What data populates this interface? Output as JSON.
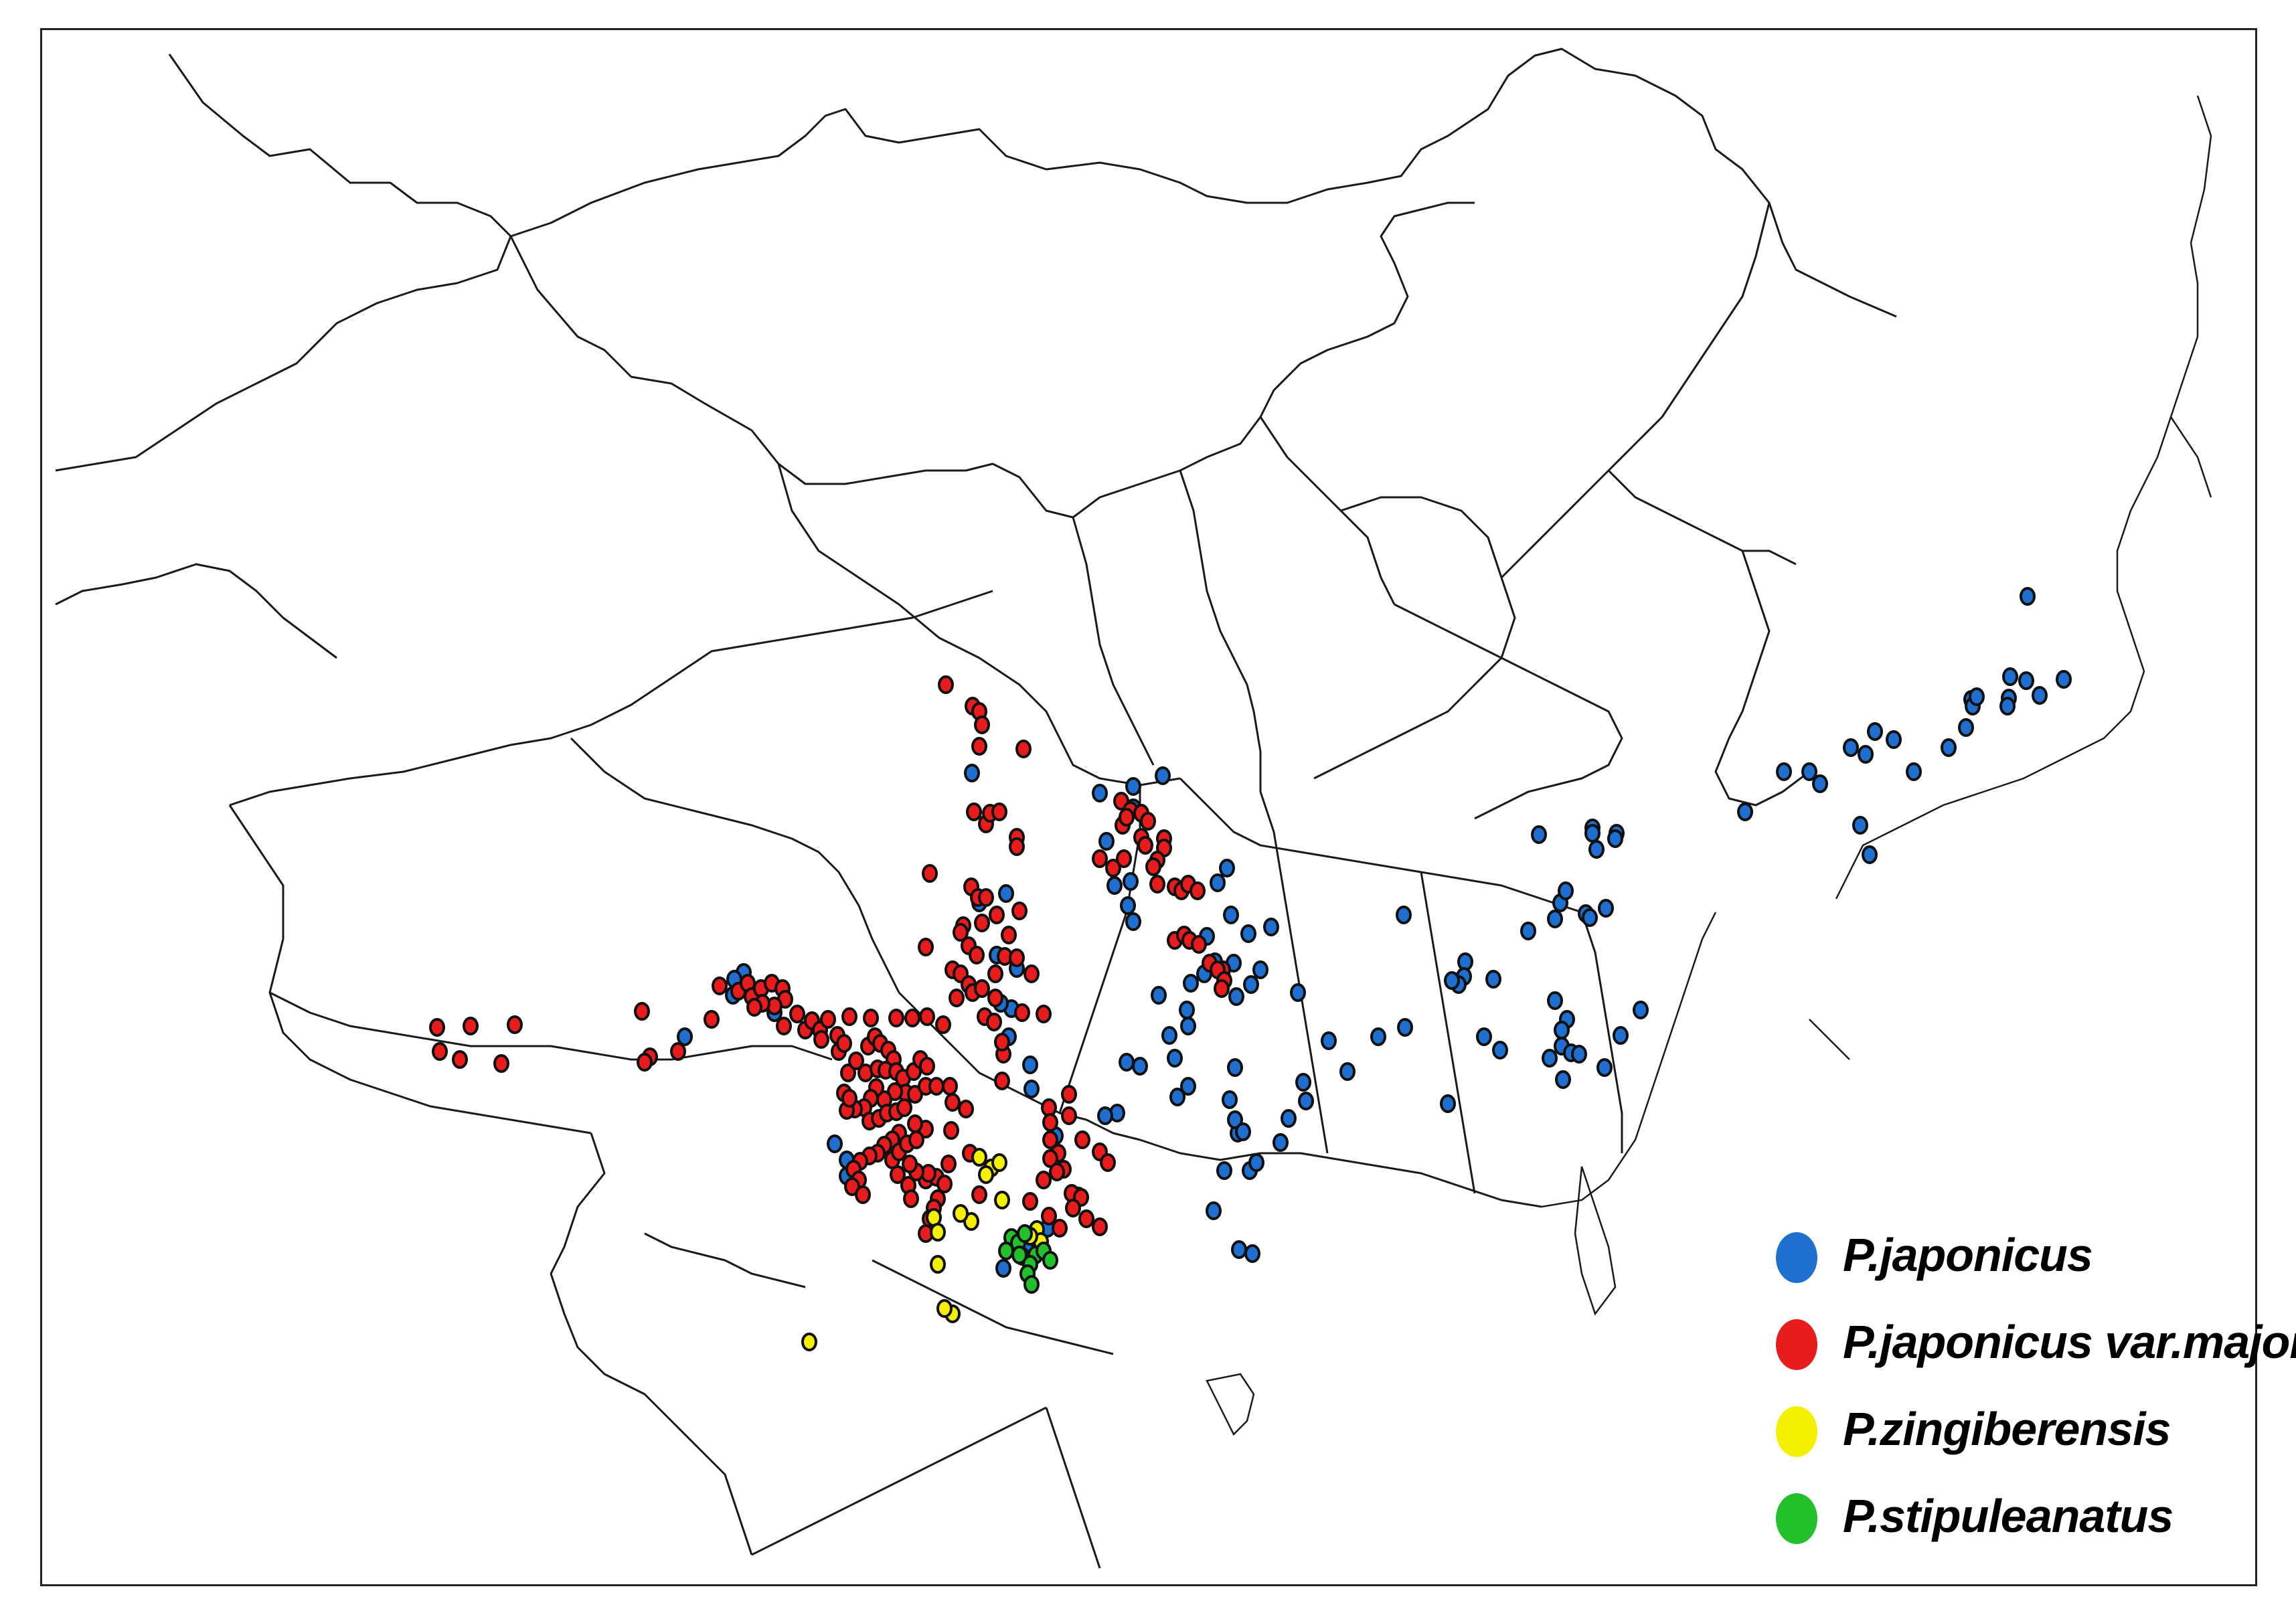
{
  "legend": {
    "items": [
      {
        "key": "japonicus",
        "label": "P.japonicus",
        "color": "#1f6fd1"
      },
      {
        "key": "major",
        "label": "P.japonicus var.major",
        "color": "#e81c1c"
      },
      {
        "key": "zingiberensis",
        "label": "P.zingiberensis",
        "color": "#f5f000"
      },
      {
        "key": "stipuleanatus",
        "label": "P.stipuleanatus",
        "color": "#22c02a"
      }
    ]
  },
  "colors": {
    "boundary": "#1a1a1a",
    "background": "#ffffff",
    "dot_outline": "#111111"
  },
  "occurrences": {
    "japonicus": [
      [
        1449,
        1152
      ],
      [
        1650,
        1254
      ],
      [
        1640,
        1182
      ],
      [
        1690,
        1172
      ],
      [
        1690,
        1204
      ],
      [
        1734,
        1156
      ],
      [
        1662,
        1320
      ],
      [
        1686,
        1314
      ],
      [
        1682,
        1350
      ],
      [
        1690,
        1374
      ],
      [
        1816,
        1316
      ],
      [
        1830,
        1294
      ],
      [
        1836,
        1364
      ],
      [
        1800,
        1396
      ],
      [
        1812,
        1434
      ],
      [
        1776,
        1466
      ],
      [
        1770,
        1506
      ],
      [
        1772,
        1530
      ],
      [
        1728,
        1484
      ],
      [
        1744,
        1544
      ],
      [
        1752,
        1578
      ],
      [
        1680,
        1584
      ],
      [
        1700,
        1590
      ],
      [
        1772,
        1620
      ],
      [
        1756,
        1636
      ],
      [
        1862,
        1392
      ],
      [
        1896,
        1382
      ],
      [
        1880,
        1446
      ],
      [
        1866,
        1468
      ],
      [
        1844,
        1486
      ],
      [
        1936,
        1480
      ],
      [
        1948,
        1642
      ],
      [
        1944,
        1614
      ],
      [
        1982,
        1552
      ],
      [
        2010,
        1598
      ],
      [
        1922,
        1668
      ],
      [
        1910,
        1704
      ],
      [
        1846,
        1690
      ],
      [
        1810,
        1806
      ],
      [
        1868,
        1870
      ],
      [
        1848,
        1864
      ],
      [
        1826,
        1746
      ],
      [
        1842,
        1670
      ],
      [
        1864,
        1746
      ],
      [
        1874,
        1734
      ],
      [
        1834,
        1640
      ],
      [
        1842,
        1592
      ],
      [
        1854,
        1688
      ],
      [
        1666,
        1660
      ],
      [
        1648,
        1664
      ],
      [
        1574,
        1694
      ],
      [
        1536,
        1588
      ],
      [
        1538,
        1624
      ],
      [
        1504,
        1546
      ],
      [
        1508,
        1504
      ],
      [
        1492,
        1496
      ],
      [
        1516,
        1444
      ],
      [
        1486,
        1424
      ],
      [
        1460,
        1346
      ],
      [
        1500,
        1332
      ],
      [
        1608,
        1784
      ],
      [
        1562,
        1832
      ],
      [
        1530,
        1862
      ],
      [
        1496,
        1892
      ],
      [
        1262,
        1730
      ],
      [
        1262,
        1754
      ],
      [
        1244,
        1706
      ],
      [
        1020,
        1546
      ],
      [
        1108,
        1450
      ],
      [
        1094,
        1460
      ],
      [
        1092,
        1484
      ],
      [
        1154,
        1510
      ],
      [
        1796,
        1452
      ],
      [
        1840,
        1436
      ],
      [
        2094,
        1364
      ],
      [
        2186,
        1434
      ],
      [
        2228,
        1460
      ],
      [
        2184,
        1456
      ],
      [
        2176,
        1468
      ],
      [
        2166,
        1462
      ],
      [
        2056,
        1546
      ],
      [
        2096,
        1532
      ],
      [
        2238,
        1566
      ],
      [
        2214,
        1546
      ],
      [
        2320,
        1492
      ],
      [
        2338,
        1520
      ],
      [
        2330,
        1536
      ],
      [
        2330,
        1560
      ],
      [
        2312,
        1578
      ],
      [
        2160,
        1646
      ],
      [
        2280,
        1388
      ],
      [
        2328,
        1346
      ],
      [
        2336,
        1328
      ],
      [
        2366,
        1362
      ],
      [
        2396,
        1354
      ],
      [
        2376,
        1234
      ],
      [
        2412,
        1242
      ],
      [
        2382,
        1266
      ],
      [
        2376,
        1242
      ],
      [
        2410,
        1250
      ],
      [
        2296,
        1244
      ],
      [
        2372,
        1368
      ],
      [
        2320,
        1370
      ],
      [
        2332,
        1610
      ],
      [
        2394,
        1592
      ],
      [
        2344,
        1570
      ],
      [
        2356,
        1572
      ],
      [
        2418,
        1544
      ],
      [
        2448,
        1506
      ],
      [
        2604,
        1210
      ],
      [
        2662,
        1150
      ],
      [
        2700,
        1150
      ],
      [
        2716,
        1168
      ],
      [
        2762,
        1114
      ],
      [
        2798,
        1090
      ],
      [
        2784,
        1124
      ],
      [
        2856,
        1150
      ],
      [
        2908,
        1114
      ],
      [
        2934,
        1084
      ],
      [
        2942,
        1042
      ],
      [
        2998,
        1040
      ],
      [
        2996,
        1052
      ],
      [
        2944,
        1052
      ],
      [
        2950,
        1038
      ],
      [
        3000,
        1008
      ],
      [
        3024,
        1014
      ],
      [
        2776,
        1230
      ],
      [
        2790,
        1274
      ],
      [
        2826,
        1102
      ],
      [
        3026,
        888
      ],
      [
        3080,
        1012
      ],
      [
        3044,
        1036
      ]
    ],
    "major": [
      [
        1410,
        1020
      ],
      [
        1450,
        1052
      ],
      [
        1460,
        1060
      ],
      [
        1464,
        1080
      ],
      [
        1460,
        1112
      ],
      [
        1526,
        1116
      ],
      [
        1452,
        1210
      ],
      [
        1470,
        1228
      ],
      [
        1476,
        1212
      ],
      [
        1490,
        1210
      ],
      [
        1516,
        1248
      ],
      [
        1516,
        1262
      ],
      [
        1386,
        1302
      ],
      [
        1448,
        1322
      ],
      [
        1458,
        1338
      ],
      [
        1470,
        1338
      ],
      [
        1436,
        1380
      ],
      [
        1464,
        1376
      ],
      [
        1486,
        1364
      ],
      [
        1520,
        1358
      ],
      [
        1504,
        1394
      ],
      [
        1498,
        1426
      ],
      [
        1432,
        1390
      ],
      [
        1444,
        1410
      ],
      [
        1456,
        1424
      ],
      [
        1380,
        1412
      ],
      [
        1420,
        1446
      ],
      [
        1432,
        1452
      ],
      [
        1444,
        1468
      ],
      [
        1450,
        1480
      ],
      [
        1464,
        1474
      ],
      [
        1426,
        1488
      ],
      [
        1468,
        1516
      ],
      [
        1406,
        1528
      ],
      [
        1382,
        1516
      ],
      [
        1360,
        1518
      ],
      [
        1336,
        1518
      ],
      [
        1298,
        1518
      ],
      [
        1266,
        1516
      ],
      [
        1248,
        1544
      ],
      [
        1250,
        1568
      ],
      [
        1264,
        1600
      ],
      [
        1276,
        1582
      ],
      [
        1294,
        1560
      ],
      [
        1304,
        1546
      ],
      [
        1312,
        1556
      ],
      [
        1324,
        1566
      ],
      [
        1332,
        1580
      ],
      [
        1290,
        1600
      ],
      [
        1308,
        1594
      ],
      [
        1320,
        1596
      ],
      [
        1336,
        1598
      ],
      [
        1346,
        1608
      ],
      [
        1362,
        1598
      ],
      [
        1372,
        1580
      ],
      [
        1382,
        1590
      ],
      [
        1350,
        1630
      ],
      [
        1334,
        1628
      ],
      [
        1318,
        1640
      ],
      [
        1306,
        1622
      ],
      [
        1298,
        1638
      ],
      [
        1288,
        1652
      ],
      [
        1274,
        1654
      ],
      [
        1262,
        1656
      ],
      [
        1258,
        1630
      ],
      [
        1266,
        1638
      ],
      [
        1296,
        1672
      ],
      [
        1310,
        1668
      ],
      [
        1322,
        1660
      ],
      [
        1336,
        1658
      ],
      [
        1348,
        1652
      ],
      [
        1364,
        1632
      ],
      [
        1380,
        1620
      ],
      [
        1396,
        1620
      ],
      [
        1416,
        1620
      ],
      [
        1420,
        1644
      ],
      [
        1418,
        1686
      ],
      [
        1380,
        1684
      ],
      [
        1364,
        1676
      ],
      [
        1340,
        1690
      ],
      [
        1330,
        1700
      ],
      [
        1318,
        1708
      ],
      [
        1308,
        1720
      ],
      [
        1296,
        1724
      ],
      [
        1282,
        1732
      ],
      [
        1272,
        1744
      ],
      [
        1330,
        1730
      ],
      [
        1340,
        1718
      ],
      [
        1352,
        1706
      ],
      [
        1366,
        1700
      ],
      [
        1280,
        1760
      ],
      [
        1270,
        1770
      ],
      [
        1286,
        1782
      ],
      [
        1338,
        1752
      ],
      [
        1354,
        1768
      ],
      [
        1358,
        1788
      ],
      [
        1380,
        1760
      ],
      [
        1396,
        1756
      ],
      [
        1414,
        1736
      ],
      [
        1446,
        1720
      ],
      [
        1440,
        1654
      ],
      [
        1398,
        1788
      ],
      [
        1408,
        1766
      ],
      [
        1392,
        1802
      ],
      [
        1386,
        1818
      ],
      [
        1380,
        1840
      ],
      [
        1384,
        1750
      ],
      [
        1366,
        1748
      ],
      [
        1356,
        1736
      ],
      [
        1556,
        1512
      ],
      [
        1564,
        1652
      ],
      [
        1566,
        1674
      ],
      [
        1566,
        1700
      ],
      [
        1460,
        1782
      ],
      [
        1594,
        1664
      ],
      [
        1578,
        1720
      ],
      [
        1640,
        1280
      ],
      [
        1660,
        1294
      ],
      [
        1676,
        1280
      ],
      [
        1674,
        1230
      ],
      [
        1672,
        1194
      ],
      [
        1686,
        1208
      ],
      [
        1680,
        1218
      ],
      [
        1702,
        1212
      ],
      [
        1712,
        1224
      ],
      [
        1702,
        1248
      ],
      [
        1708,
        1260
      ],
      [
        1736,
        1250
      ],
      [
        1736,
        1264
      ],
      [
        1726,
        1282
      ],
      [
        1720,
        1292
      ],
      [
        1726,
        1318
      ],
      [
        1752,
        1322
      ],
      [
        1762,
        1328
      ],
      [
        1772,
        1318
      ],
      [
        1786,
        1328
      ],
      [
        1824,
        1446
      ],
      [
        1804,
        1436
      ],
      [
        1816,
        1446
      ],
      [
        1826,
        1462
      ],
      [
        1822,
        1474
      ],
      [
        1752,
        1402
      ],
      [
        1766,
        1394
      ],
      [
        1774,
        1402
      ],
      [
        1788,
        1408
      ],
      [
        1594,
        1632
      ],
      [
        1614,
        1700
      ],
      [
        1640,
        1718
      ],
      [
        1652,
        1734
      ],
      [
        1586,
        1744
      ],
      [
        1566,
        1728
      ],
      [
        1576,
        1748
      ],
      [
        1556,
        1760
      ],
      [
        1598,
        1780
      ],
      [
        1612,
        1786
      ],
      [
        1564,
        1814
      ],
      [
        1600,
        1802
      ],
      [
        1580,
        1832
      ],
      [
        1620,
        1818
      ],
      [
        1640,
        1830
      ],
      [
        1536,
        1792
      ],
      [
        1494,
        1612
      ],
      [
        1496,
        1572
      ],
      [
        1494,
        1554
      ],
      [
        1482,
        1524
      ],
      [
        1484,
        1488
      ],
      [
        1484,
        1452
      ],
      [
        1516,
        1428
      ],
      [
        1524,
        1510
      ],
      [
        1538,
        1452
      ],
      [
        1100,
        1478
      ],
      [
        1114,
        1466
      ],
      [
        1120,
        1486
      ],
      [
        1134,
        1474
      ],
      [
        1150,
        1466
      ],
      [
        1166,
        1474
      ],
      [
        1170,
        1490
      ],
      [
        1154,
        1500
      ],
      [
        1136,
        1496
      ],
      [
        1124,
        1502
      ],
      [
        1168,
        1530
      ],
      [
        1188,
        1512
      ],
      [
        1200,
        1536
      ],
      [
        1210,
        1522
      ],
      [
        1222,
        1536
      ],
      [
        1234,
        1520
      ],
      [
        1224,
        1550
      ],
      [
        1258,
        1556
      ],
      [
        956,
        1508
      ],
      [
        968,
        1576
      ],
      [
        1010,
        1568
      ],
      [
        650,
        1532
      ],
      [
        654,
        1568
      ],
      [
        684,
        1580
      ],
      [
        700,
        1530
      ],
      [
        746,
        1586
      ],
      [
        766,
        1528
      ],
      [
        960,
        1584
      ],
      [
        1060,
        1520
      ],
      [
        1072,
        1470
      ]
    ],
    "zingiberensis": [
      [
        1460,
        1726
      ],
      [
        1478,
        1742
      ],
      [
        1490,
        1734
      ],
      [
        1470,
        1752
      ],
      [
        1494,
        1790
      ],
      [
        1448,
        1822
      ],
      [
        1432,
        1810
      ],
      [
        1392,
        1816
      ],
      [
        1398,
        1838
      ],
      [
        1398,
        1886
      ],
      [
        1546,
        1834
      ],
      [
        1552,
        1852
      ],
      [
        1536,
        1844
      ],
      [
        1524,
        1874
      ],
      [
        1420,
        1960
      ],
      [
        1408,
        1952
      ],
      [
        1206,
        2002
      ]
    ],
    "stipuleanatus": [
      [
        1508,
        1846
      ],
      [
        1518,
        1854
      ],
      [
        1528,
        1840
      ],
      [
        1544,
        1872
      ],
      [
        1556,
        1866
      ],
      [
        1566,
        1880
      ],
      [
        1536,
        1886
      ],
      [
        1520,
        1872
      ],
      [
        1500,
        1866
      ],
      [
        1532,
        1900
      ],
      [
        1538,
        1916
      ]
    ]
  }
}
